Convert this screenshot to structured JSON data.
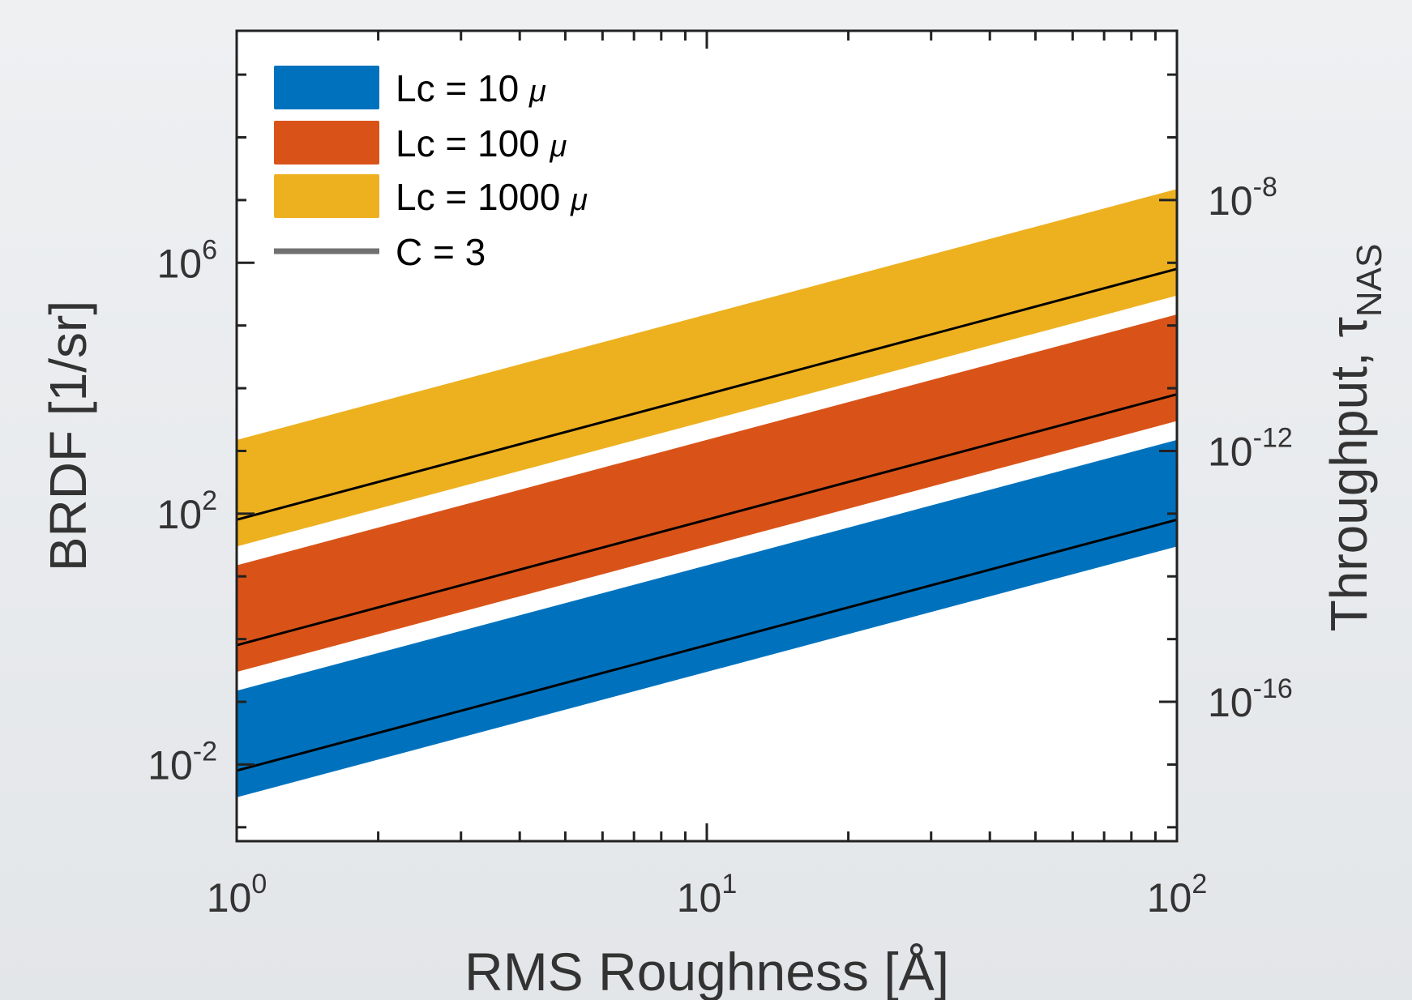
{
  "chart_data": {
    "type": "area",
    "xlabel": "RMS Roughness [Å]",
    "ylabel": "BRDF [1/sr]",
    "y2label": "Throughput, τ",
    "y2label_sub": "NAS",
    "xscale": "log",
    "yscale": "log",
    "xlim": [
      1,
      100
    ],
    "ylim": [
      0.0006,
      5000000000
    ],
    "y2lim": [
      6e-19,
      5e-06
    ],
    "x_ticks": [
      {
        "value": 1,
        "base": "10",
        "exp": "0"
      },
      {
        "value": 10,
        "base": "10",
        "exp": "1"
      },
      {
        "value": 100,
        "base": "10",
        "exp": "2"
      }
    ],
    "y_ticks": [
      {
        "value": 0.01,
        "base": "10",
        "exp": "-2"
      },
      {
        "value": 100,
        "base": "10",
        "exp": "2"
      },
      {
        "value": 1000000,
        "base": "10",
        "exp": "6"
      }
    ],
    "y2_ticks": [
      {
        "value": 1e-16,
        "base": "10",
        "exp": "-16"
      },
      {
        "value": 1e-12,
        "base": "10",
        "exp": "-12"
      },
      {
        "value": 1e-08,
        "base": "10",
        "exp": "-8"
      }
    ],
    "x": [
      1,
      100
    ],
    "series": [
      {
        "name": "Lc = 10",
        "unit": "μ",
        "color": "#0072BD",
        "lower": [
          0.003,
          30
        ],
        "upper": [
          0.15,
          1500
        ]
      },
      {
        "name": "Lc = 100",
        "unit": "μ",
        "color": "#D95319",
        "lower": [
          0.3,
          3000
        ],
        "upper": [
          15,
          150000
        ]
      },
      {
        "name": "Lc = 1000",
        "unit": "μ",
        "color": "#EDB120",
        "lower": [
          30,
          300000
        ],
        "upper": [
          1500,
          15000000
        ]
      }
    ],
    "lines": [
      {
        "label": "C = 3",
        "color": "#000000",
        "y": [
          0.008,
          80
        ]
      },
      {
        "color": "#000000",
        "y": [
          0.8,
          8000
        ]
      },
      {
        "color": "#000000",
        "y": [
          80,
          800000
        ]
      }
    ],
    "legend": {
      "position": "top-left",
      "entries": [
        {
          "text": "Lc = 10 ",
          "unit": "μ",
          "color": "#0072BD",
          "kind": "patch"
        },
        {
          "text": "Lc = 100 ",
          "unit": "μ",
          "color": "#D95319",
          "kind": "patch"
        },
        {
          "text": "Lc = 1000 ",
          "unit": "μ",
          "color": "#EDB120",
          "kind": "patch"
        },
        {
          "text": "C = 3",
          "color": "#707070",
          "kind": "line"
        }
      ]
    },
    "grid": false
  }
}
